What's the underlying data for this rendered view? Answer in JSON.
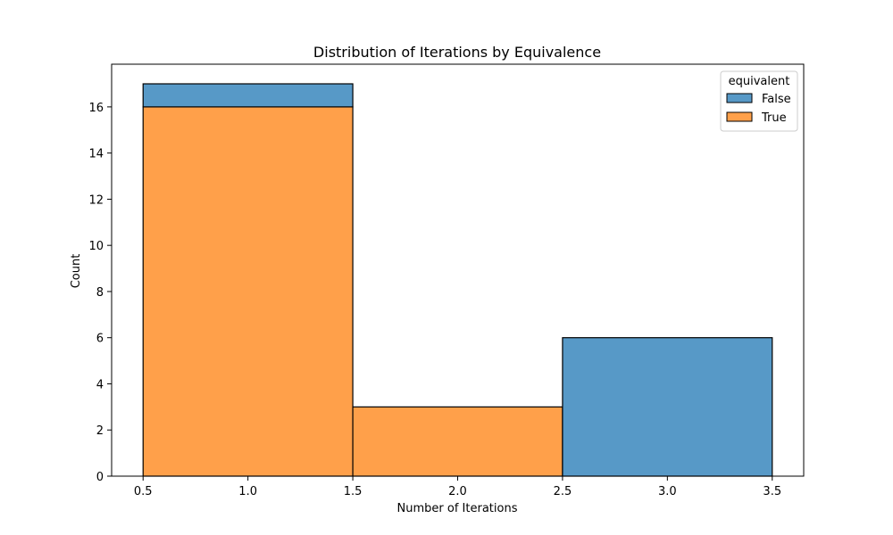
{
  "colors": {
    "False": "#5799c7",
    "True": "#ffa04a",
    "edge": "#000000"
  },
  "chart_data": {
    "type": "bar",
    "title": "Distribution of Iterations by Equivalence",
    "xlabel": "Number of Iterations",
    "ylabel": "Count",
    "xlim": [
      0.35,
      3.65
    ],
    "ylim": [
      0,
      17.85
    ],
    "xticks": [
      0.5,
      1.0,
      1.5,
      2.0,
      2.5,
      3.0,
      3.5
    ],
    "xtick_labels": [
      "0.5",
      "1.0",
      "1.5",
      "2.0",
      "2.5",
      "3.0",
      "3.5"
    ],
    "yticks": [
      0,
      2,
      4,
      6,
      8,
      10,
      12,
      14,
      16
    ],
    "ytick_labels": [
      "0",
      "2",
      "4",
      "6",
      "8",
      "10",
      "12",
      "14",
      "16"
    ],
    "stacked": true,
    "bins": [
      {
        "x0": 0.5,
        "x1": 1.5,
        "True": 16,
        "False": 1
      },
      {
        "x0": 1.5,
        "x1": 2.5,
        "True": 3,
        "False": 0
      },
      {
        "x0": 2.5,
        "x1": 3.5,
        "True": 0,
        "False": 6
      }
    ],
    "legend": {
      "title": "equivalent",
      "placement": "top-right",
      "entries": [
        "False",
        "True"
      ]
    },
    "grid": false
  }
}
